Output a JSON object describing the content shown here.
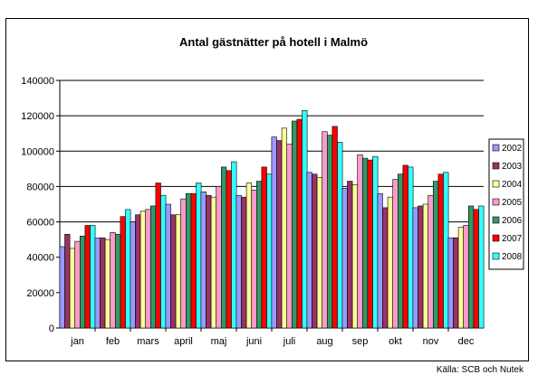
{
  "chart_data": {
    "type": "bar",
    "title": "Antal gästnätter på  hotell i Malmö",
    "xlabel": "",
    "ylabel": "",
    "ylim": [
      0,
      140000
    ],
    "yticks": [
      0,
      20000,
      40000,
      60000,
      80000,
      100000,
      120000,
      140000
    ],
    "ytick_labels": [
      "0",
      "20000",
      "40000",
      "60000",
      "80000",
      "100000",
      "120000",
      "140000"
    ],
    "grid": true,
    "legend_position": "right",
    "categories": [
      "jan",
      "feb",
      "mars",
      "april",
      "maj",
      "juni",
      "juli",
      "aug",
      "sep",
      "okt",
      "nov",
      "dec"
    ],
    "series": [
      {
        "name": "2002",
        "color": "#9999ff",
        "values": [
          46000,
          51000,
          60000,
          70000,
          77000,
          75000,
          108000,
          88000,
          79000,
          76000,
          68000,
          51000
        ]
      },
      {
        "name": "2003",
        "color": "#993366",
        "values": [
          53000,
          51000,
          64000,
          64000,
          75000,
          74000,
          106000,
          87000,
          83000,
          68000,
          69000,
          51000
        ]
      },
      {
        "name": "2004",
        "color": "#ffff99",
        "values": [
          45000,
          50000,
          66000,
          64000,
          74000,
          82000,
          113000,
          85000,
          81000,
          74000,
          70000,
          57000
        ]
      },
      {
        "name": "2005",
        "color": "#ff99cc",
        "values": [
          49000,
          54000,
          67000,
          73000,
          80000,
          78000,
          104000,
          111000,
          98000,
          84000,
          75000,
          58000
        ]
      },
      {
        "name": "2006",
        "color": "#339966",
        "values": [
          52000,
          53000,
          69000,
          76000,
          91000,
          83000,
          117000,
          109000,
          96000,
          87000,
          83000,
          69000
        ]
      },
      {
        "name": "2007",
        "color": "#ff0000",
        "values": [
          58000,
          63000,
          82000,
          76000,
          89000,
          91000,
          118000,
          114000,
          95000,
          92000,
          87000,
          67000
        ]
      },
      {
        "name": "2008",
        "color": "#33ffff",
        "values": [
          58000,
          67000,
          75000,
          82000,
          94000,
          87000,
          123000,
          105000,
          97000,
          91000,
          88000,
          69000
        ]
      }
    ]
  },
  "source_note": "Källa: SCB och Nutek"
}
